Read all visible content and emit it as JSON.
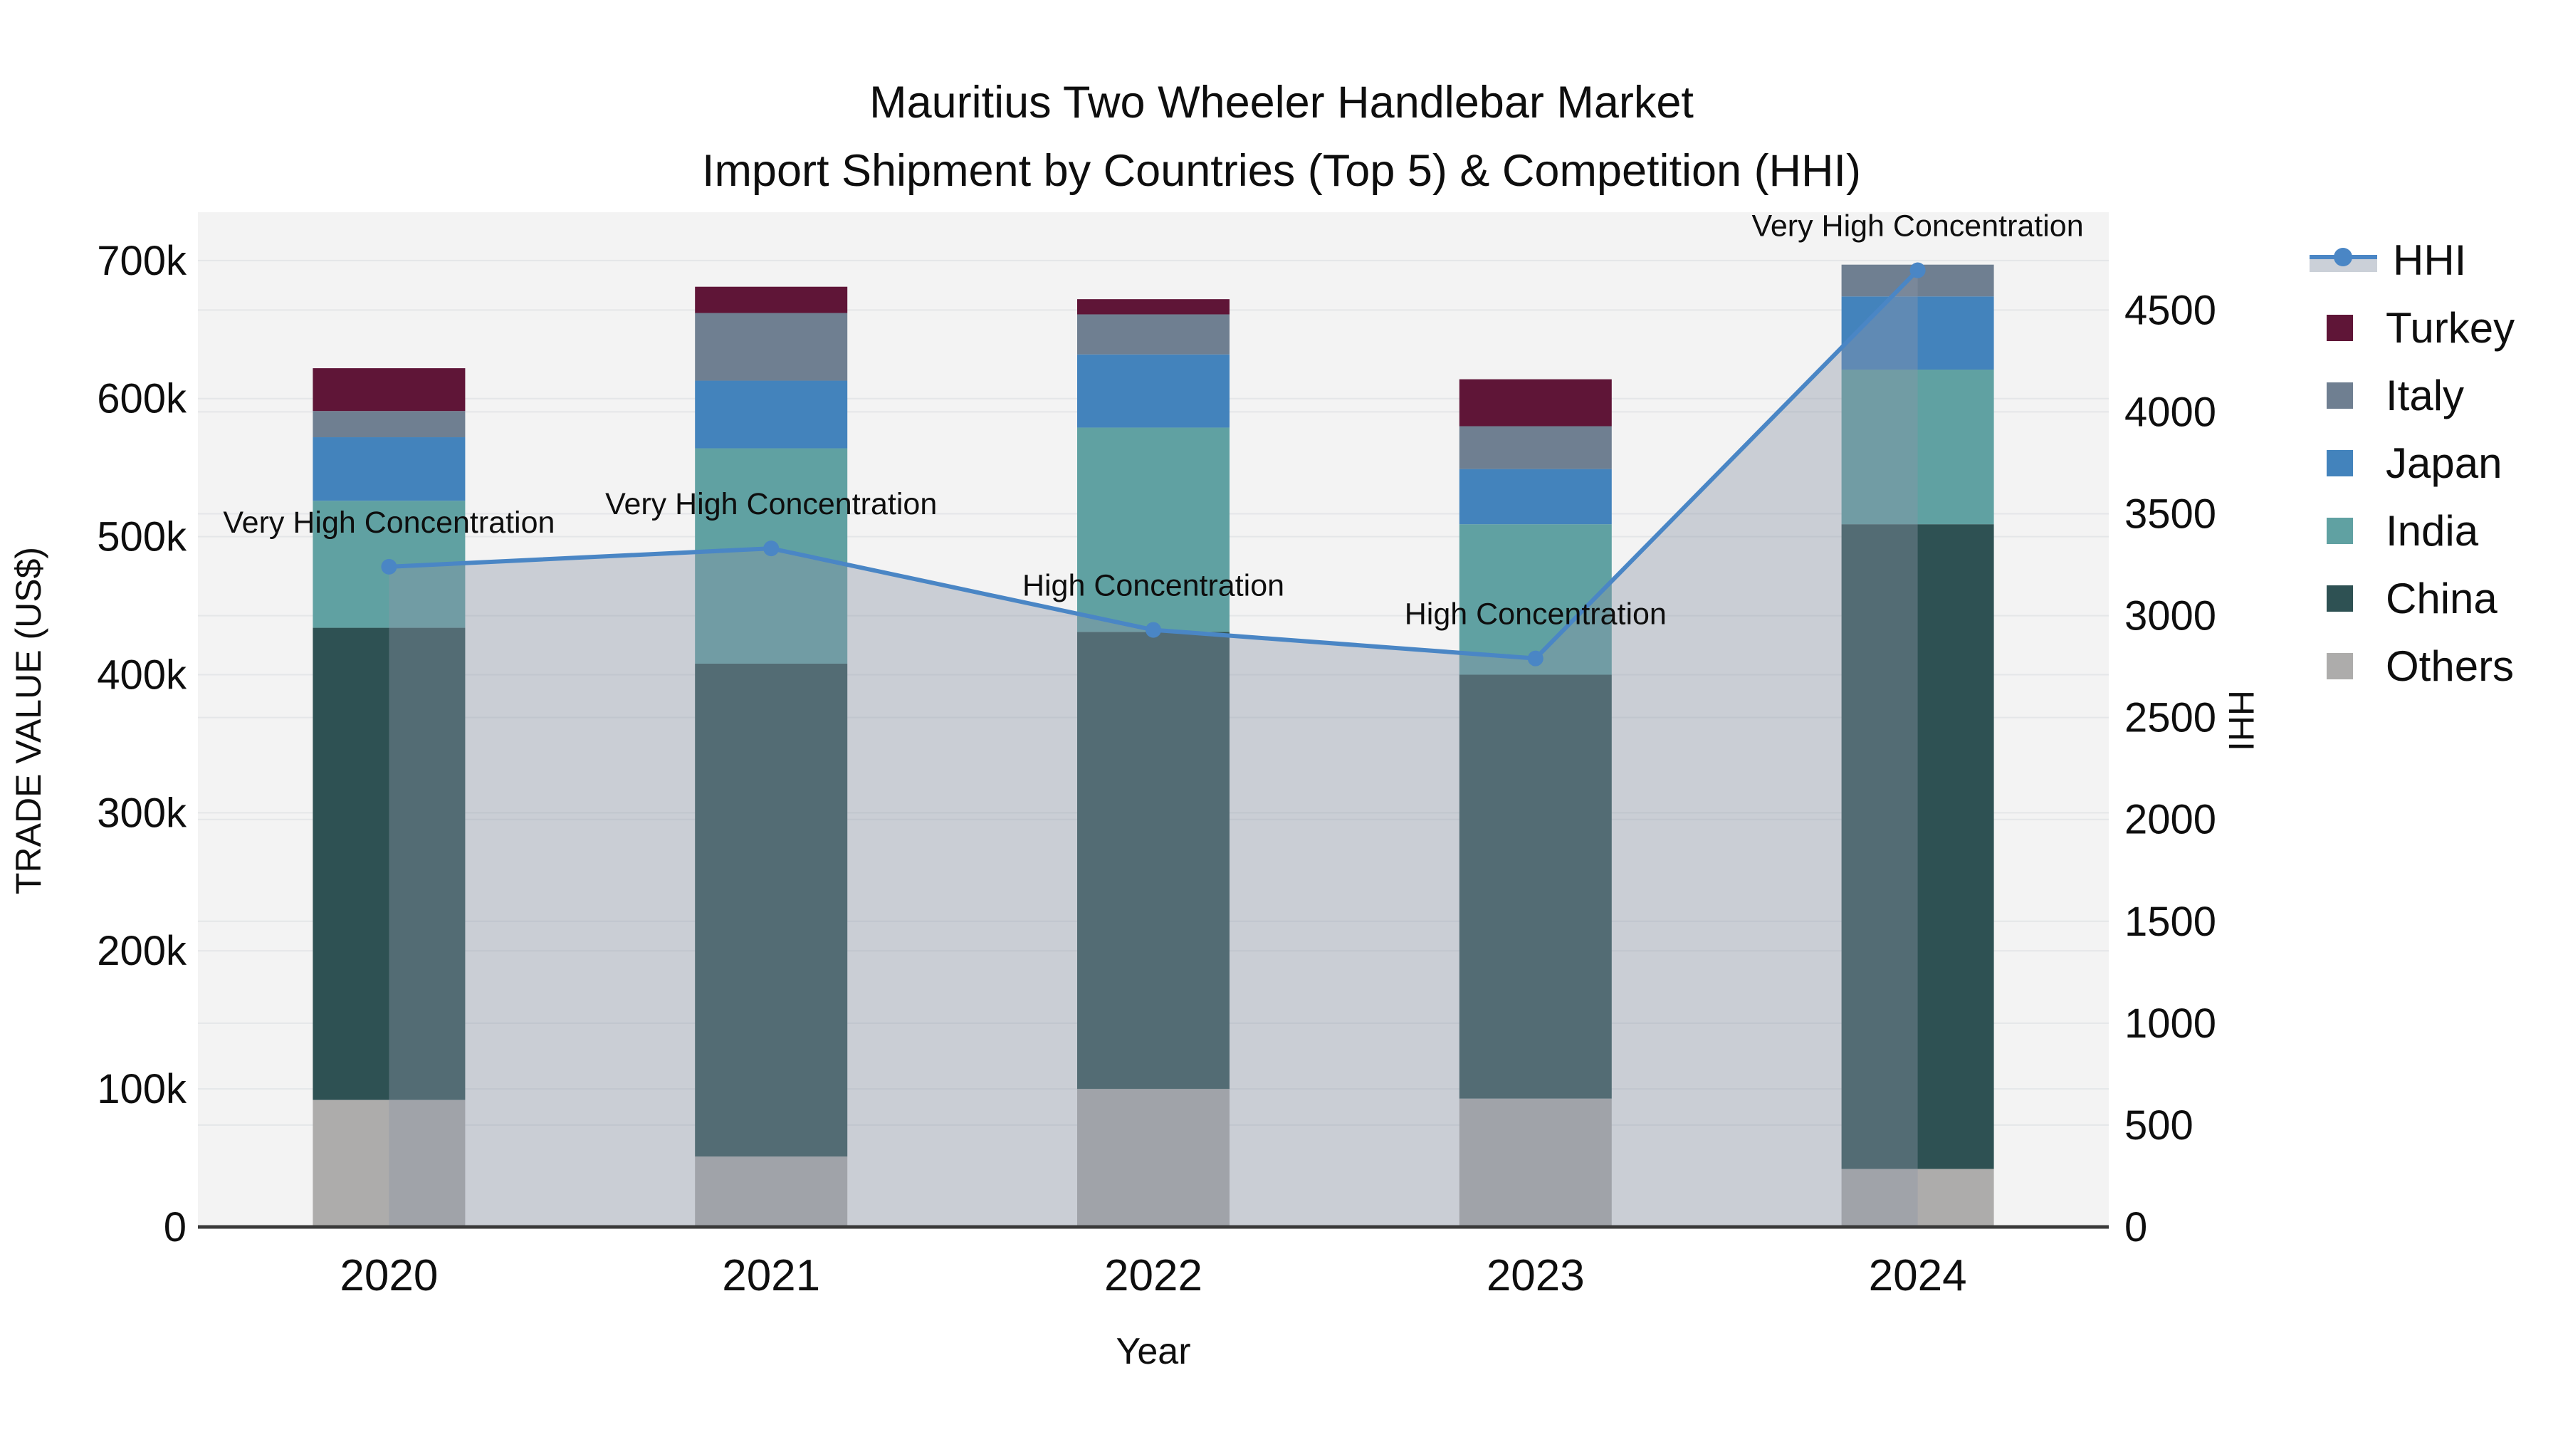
{
  "title": {
    "line1": "Mauritius Two Wheeler Handlebar Market",
    "line2": "Import Shipment by Countries (Top 5) & Competition (HHI)"
  },
  "colors": {
    "plot_bg": "#f3f3f3",
    "grid": "#e4e6e8",
    "axis_line": "#3a3a3a",
    "text": "#0e0e0e",
    "hhi_line": "#4a86c5",
    "hhi_fill": "rgba(140,150,168,0.40)",
    "turkey": "#5f1537",
    "italy": "#6f7f91",
    "japan": "#4383bc",
    "india": "#60a1a2",
    "china": "#2e5153",
    "others": "#adacab"
  },
  "chart_data": {
    "type": "bar",
    "subtype": "stacked-bars-with-line-overlay",
    "categories": [
      "2020",
      "2021",
      "2022",
      "2023",
      "2024"
    ],
    "x_label": "Year",
    "series": [
      {
        "name": "Others",
        "color_key": "others",
        "values": [
          92000,
          51000,
          100000,
          93000,
          42000
        ]
      },
      {
        "name": "China",
        "color_key": "china",
        "values": [
          342000,
          357000,
          331000,
          307000,
          467000
        ]
      },
      {
        "name": "India",
        "color_key": "india",
        "values": [
          92000,
          156000,
          148000,
          109000,
          112000
        ]
      },
      {
        "name": "Japan",
        "color_key": "japan",
        "values": [
          46000,
          49000,
          53000,
          40000,
          53000
        ]
      },
      {
        "name": "Italy",
        "color_key": "italy",
        "values": [
          19000,
          49000,
          29000,
          31000,
          23000
        ]
      },
      {
        "name": "Turkey",
        "color_key": "turkey",
        "values": [
          31000,
          19000,
          11000,
          34000,
          0
        ]
      }
    ],
    "bar_totals": [
      622000,
      681000,
      672000,
      614000,
      697000
    ],
    "line_series": {
      "name": "HHI",
      "values": [
        3240,
        3330,
        2930,
        2790,
        4695
      ],
      "fill": "tozeroy"
    },
    "annotations": [
      {
        "x": "2020",
        "text": "Very High Concentration"
      },
      {
        "x": "2021",
        "text": "Very High Concentration"
      },
      {
        "x": "2022",
        "text": "High Concentration"
      },
      {
        "x": "2023",
        "text": "High Concentration"
      },
      {
        "x": "2024",
        "text": "Very High Concentration"
      }
    ],
    "y_left": {
      "label": "TRADE VALUE (US$)",
      "tick_values": [
        0,
        100000,
        200000,
        300000,
        400000,
        500000,
        600000,
        700000
      ],
      "tick_labels": [
        "0",
        "100k",
        "200k",
        "300k",
        "400k",
        "500k",
        "600k",
        "700k"
      ],
      "range": [
        0,
        735000
      ],
      "grid": true
    },
    "y_right": {
      "label": "HHI",
      "tick_values": [
        0,
        500,
        1000,
        1500,
        2000,
        2500,
        3000,
        3500,
        4000,
        4500
      ],
      "tick_labels": [
        "0",
        "500",
        "1000",
        "1500",
        "2000",
        "2500",
        "3000",
        "3500",
        "4000",
        "4500"
      ],
      "range": [
        0,
        4980
      ],
      "grid": true
    },
    "legend_position": "right"
  },
  "legend": {
    "items": [
      {
        "label": "HHI",
        "type": "line",
        "color_key": "hhi_line"
      },
      {
        "label": "Turkey",
        "type": "box",
        "color_key": "turkey"
      },
      {
        "label": "Italy",
        "type": "box",
        "color_key": "italy"
      },
      {
        "label": "Japan",
        "type": "box",
        "color_key": "japan"
      },
      {
        "label": "India",
        "type": "box",
        "color_key": "india"
      },
      {
        "label": "China",
        "type": "box",
        "color_key": "china"
      },
      {
        "label": "Others",
        "type": "box",
        "color_key": "others"
      }
    ]
  }
}
